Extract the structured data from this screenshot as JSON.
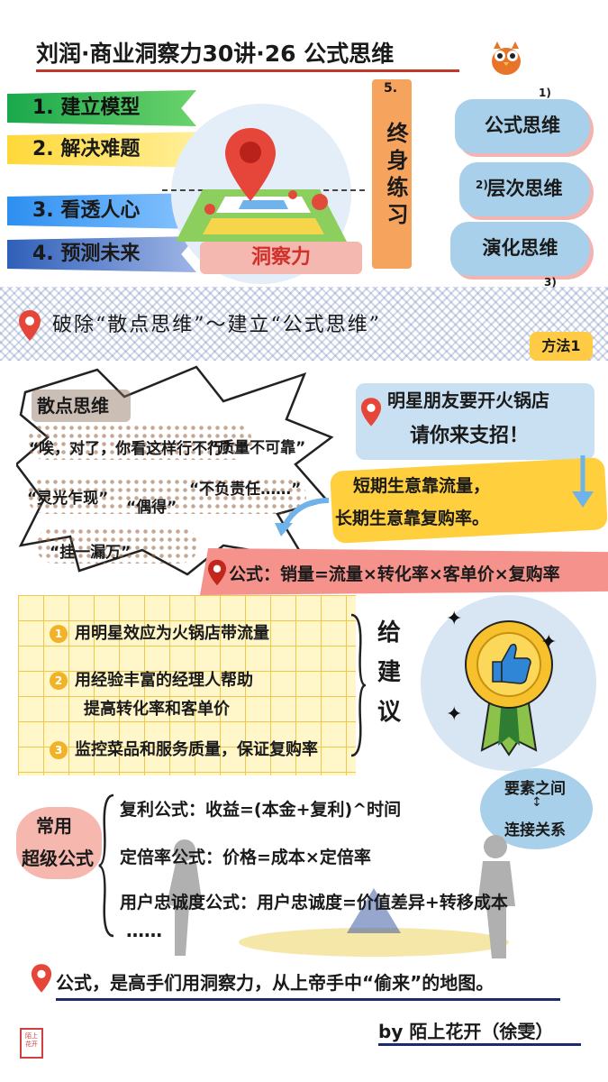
{
  "title": "刘润·商业洞察力30讲·26 公式思维",
  "left_steps": [
    {
      "label": "1. 建立模型"
    },
    {
      "label": "2. 解决难题"
    },
    {
      "label": "3. 看透人心"
    },
    {
      "label": "4. 预测未来"
    }
  ],
  "insight_label": "洞察力",
  "practice": {
    "number": "5.",
    "text": "终身练习"
  },
  "bubbles": [
    {
      "number": "1)",
      "label": "公式思维"
    },
    {
      "number": "2)",
      "label": "层次思维"
    },
    {
      "number": "3)",
      "label": "演化思维"
    }
  ],
  "banner": "破除“散点思维”～建立“公式思维”",
  "method_label": "方法1",
  "scatter": {
    "title": "散点思维",
    "quotes": [
      "“唉，对了，你看这样行不行？”",
      "“灵光乍现”",
      "“偶得”",
      "“质量不可靠”",
      "“不负责任……”",
      "“挂一漏万”"
    ]
  },
  "friend": {
    "line1": "明星朋友要开火锅店",
    "line2": "请你来支招！"
  },
  "short_long": {
    "line1": "短期生意靠流量，",
    "line2": "长期生意靠复购率。"
  },
  "formula": "公式：销量=流量×转化率×客单价×复购率",
  "advice": {
    "items": [
      {
        "num": "1",
        "text": "用明星效应为火锅店带流量"
      },
      {
        "num": "2",
        "text": "用经验丰富的经理人帮助",
        "text2": "提高转化率和客单价"
      },
      {
        "num": "3",
        "text": "监控菜品和服务质量，保证复购率"
      }
    ],
    "label": "给建议"
  },
  "elements": {
    "line1": "要素之间",
    "line2": "连接关系"
  },
  "common": {
    "line1": "常用",
    "line2": "超级公式"
  },
  "super_formulas": [
    "复利公式：收益=(本金+复利)^时间",
    "定倍率公式：价格=成本×定倍率",
    "用户忠诚度公式：用户忠诚度=价值差异+转移成本",
    "……"
  ],
  "conclusion": "公式，是高手们用洞察力，从上帝手中“偷来”的地图。",
  "byline": "by 陌上花开（徐雯）",
  "colors": {
    "accent_red": "#c0392b",
    "navy": "#1b2b6b",
    "yellow": "#ffcf3e",
    "blue": "#a8d0ea",
    "orange": "#f6a35d"
  }
}
